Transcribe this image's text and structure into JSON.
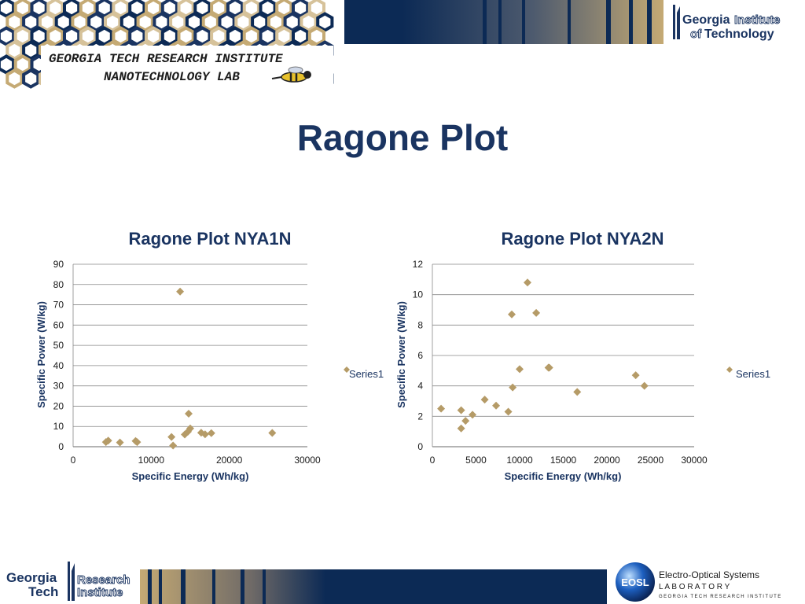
{
  "header": {
    "lab_line1": "GEORGIA TECH RESEARCH INSTITUTE",
    "lab_line2": "NANOTECHNOLOGY LAB",
    "gt_logo_word1": "Georgia",
    "gt_logo_word2": "Institute",
    "gt_logo_word3": "of",
    "gt_logo_word4": "Technology"
  },
  "slide": {
    "title": "Ragone Plot"
  },
  "footer": {
    "gt_word1": "Georgia",
    "gt_word2": "Tech",
    "rt_word1": "Research",
    "rt_word2": "Institute",
    "eosl_badge": "EOSL",
    "eosl_line1": "Electro-Optical Systems",
    "eosl_line2": "L A B O R A T O R Y",
    "eosl_line3": "GEORGIA TECH RESEARCH INSTITUTE"
  },
  "colors": {
    "navy": "#1a3461",
    "gold": "#b49a63",
    "marker": "#b59b67",
    "grid": "#888888"
  },
  "chart_data": [
    {
      "type": "scatter",
      "title": "Ragone Plot NYA1N",
      "xlabel": "Specific Energy (Wh/kg)",
      "ylabel": "Specific Power (W/kg)",
      "xlim": [
        0,
        30000
      ],
      "ylim": [
        0,
        90
      ],
      "xticks": [
        0,
        10000,
        20000,
        30000
      ],
      "yticks": [
        0,
        10,
        20,
        30,
        40,
        50,
        60,
        70,
        80,
        90
      ],
      "grid": "horizontal",
      "legend": "right",
      "series": [
        {
          "name": "Series1",
          "points": [
            [
              4200,
              2.3
            ],
            [
              4500,
              3.0
            ],
            [
              6000,
              2.1
            ],
            [
              8000,
              2.8
            ],
            [
              8200,
              2.3
            ],
            [
              12600,
              4.8
            ],
            [
              12800,
              0.6
            ],
            [
              13700,
              76.5
            ],
            [
              14300,
              6.0
            ],
            [
              14700,
              7.4
            ],
            [
              14800,
              16.3
            ],
            [
              15000,
              9.0
            ],
            [
              16400,
              6.9
            ],
            [
              16900,
              6.1
            ],
            [
              17700,
              6.7
            ],
            [
              25500,
              6.8
            ]
          ]
        }
      ]
    },
    {
      "type": "scatter",
      "title": "Ragone Plot NYA2N",
      "xlabel": "Specific Energy (Wh/kg)",
      "ylabel": "Specific Power (W/kg)",
      "xlim": [
        0,
        30000
      ],
      "ylim": [
        0,
        12
      ],
      "xticks": [
        0,
        5000,
        10000,
        15000,
        20000,
        25000,
        30000
      ],
      "yticks": [
        0,
        2,
        4,
        6,
        8,
        10,
        12
      ],
      "grid": "horizontal",
      "legend": "right",
      "series": [
        {
          "name": "Series1",
          "points": [
            [
              1000,
              2.5
            ],
            [
              3300,
              2.4
            ],
            [
              3300,
              1.2
            ],
            [
              3800,
              1.7
            ],
            [
              4600,
              2.1
            ],
            [
              6000,
              3.1
            ],
            [
              7300,
              2.7
            ],
            [
              8700,
              2.3
            ],
            [
              9100,
              8.7
            ],
            [
              9200,
              3.9
            ],
            [
              10000,
              5.1
            ],
            [
              10900,
              10.8
            ],
            [
              11900,
              8.8
            ],
            [
              13300,
              5.2
            ],
            [
              13400,
              5.2
            ],
            [
              16600,
              3.6
            ],
            [
              23300,
              4.7
            ],
            [
              24300,
              4.0
            ]
          ]
        }
      ]
    }
  ]
}
